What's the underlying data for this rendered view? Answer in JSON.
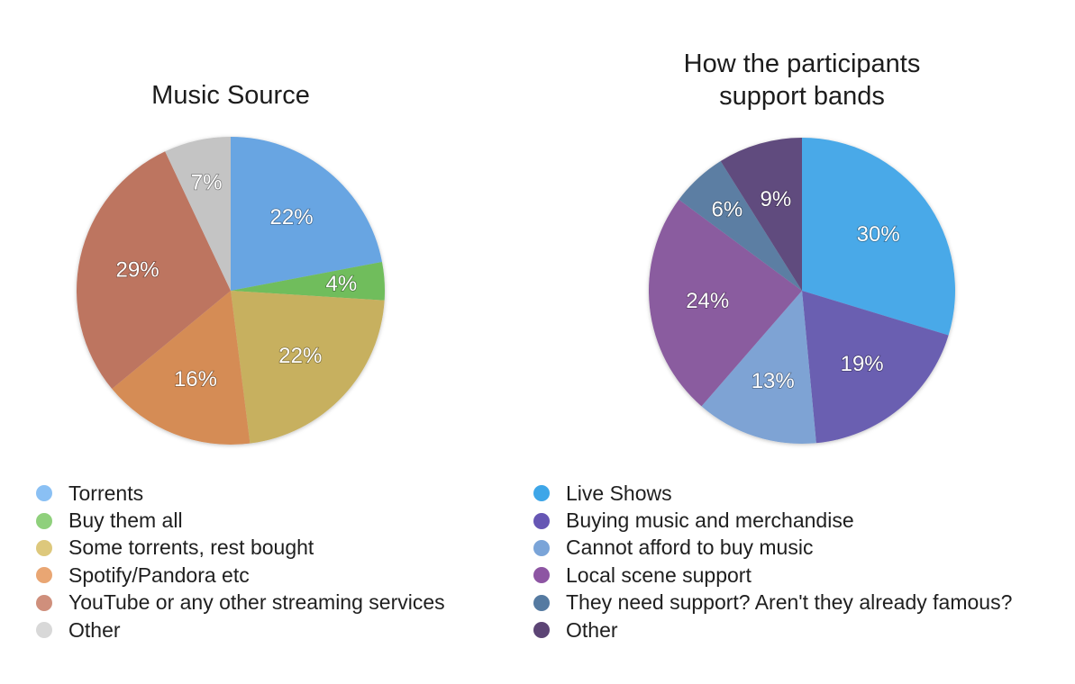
{
  "chart_data": [
    {
      "type": "pie",
      "title": "Music Source",
      "categories": [
        "Torrents",
        "Buy them all",
        "Some torrents, rest bought",
        "Spotify/Pandora etc",
        "YouTube or any other streaming services",
        "Other"
      ],
      "values": [
        22,
        4,
        22,
        16,
        29,
        7
      ],
      "labels": [
        "22%",
        "4%",
        "22%",
        "16%",
        "29%",
        "7%"
      ],
      "colors": [
        "#67a5e2",
        "#6fbd5c",
        "#c7b05f",
        "#d58c55",
        "#bd7461",
        "#c4c4c4"
      ],
      "legend_colors": [
        "#8ac0f4",
        "#8fd07c",
        "#ddc87c",
        "#e9a673",
        "#cf8f7c",
        "#d8d8d8"
      ],
      "legend_position": "bottom"
    },
    {
      "type": "pie",
      "title": "How the participants\nsupport bands",
      "categories": [
        "Live Shows",
        "Buying music and merchandise",
        "Cannot afford to buy music",
        "Local scene support",
        "They need support? Aren't they already famous?",
        "Other"
      ],
      "values": [
        30,
        19,
        13,
        24,
        6,
        9
      ],
      "labels": [
        "30%",
        "19%",
        "13%",
        "24%",
        "6%",
        "9%"
      ],
      "colors": [
        "#4aa9e8",
        "#6a5fb1",
        "#7ea3d4",
        "#8a5b9f",
        "#5b7ea3",
        "#614c7e"
      ],
      "legend_colors": [
        "#3ea6e8",
        "#6656b4",
        "#7aa4d8",
        "#8d55a3",
        "#557aa1",
        "#5c4475"
      ],
      "legend_position": "bottom"
    }
  ]
}
